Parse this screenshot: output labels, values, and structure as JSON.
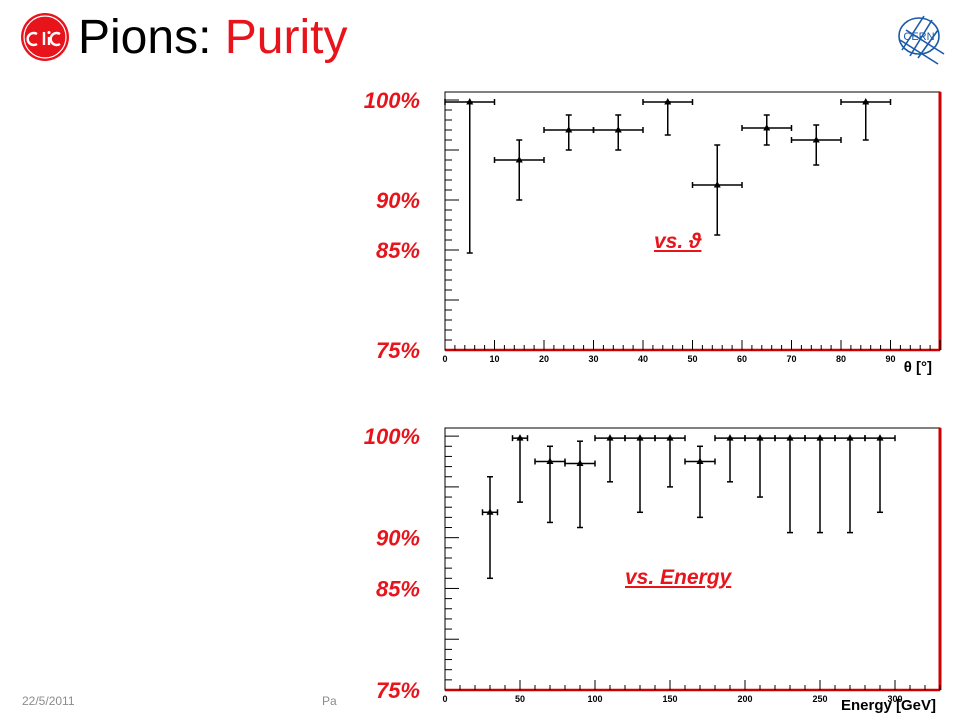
{
  "header": {
    "title_prefix": "Pions: ",
    "title_accent": "Purity"
  },
  "footer": {
    "date": "22/5/2011",
    "page_fragment": "Pa"
  },
  "colors": {
    "accent": "#e8141c",
    "frame_right_edge": "#cc0000",
    "cern_blue": "#1a5aa8",
    "footer_text": "#8c8c8c"
  },
  "icons": [
    "clic-logo",
    "cern-logo"
  ],
  "logos": {
    "cern_text": "CERN",
    "clic_text": "CLIC"
  },
  "chart_data": [
    {
      "type": "scatter",
      "style": "error-bars",
      "note_label": "vs. ϑ",
      "xlabel": "θ [°]",
      "xlim": [
        0,
        100
      ],
      "ylim": [
        75,
        100.8
      ],
      "x_ticks": [
        0,
        10,
        20,
        30,
        40,
        50,
        60,
        70,
        80,
        90
      ],
      "y_labels": [
        {
          "value": 100,
          "text": "100%"
        },
        {
          "value": 90,
          "text": "90%"
        },
        {
          "value": 85,
          "text": "85%"
        },
        {
          "value": 75,
          "text": "75%"
        }
      ],
      "grid": false,
      "points": [
        {
          "x": 5,
          "y": 99.8,
          "xerr": 5,
          "ylo": 84.7,
          "yhi": 99.8
        },
        {
          "x": 15,
          "y": 94.0,
          "xerr": 5,
          "ylo": 90.0,
          "yhi": 96.0
        },
        {
          "x": 25,
          "y": 97.0,
          "xerr": 5,
          "ylo": 95.0,
          "yhi": 98.5
        },
        {
          "x": 35,
          "y": 97.0,
          "xerr": 5,
          "ylo": 95.0,
          "yhi": 98.5
        },
        {
          "x": 45,
          "y": 99.8,
          "xerr": 5,
          "ylo": 96.5,
          "yhi": 99.8
        },
        {
          "x": 55,
          "y": 91.5,
          "xerr": 5,
          "ylo": 86.5,
          "yhi": 95.5
        },
        {
          "x": 65,
          "y": 97.2,
          "xerr": 5,
          "ylo": 95.5,
          "yhi": 98.5
        },
        {
          "x": 75,
          "y": 96.0,
          "xerr": 5,
          "ylo": 93.5,
          "yhi": 97.5
        },
        {
          "x": 85,
          "y": 99.8,
          "xerr": 5,
          "ylo": 96.0,
          "yhi": 99.8
        }
      ]
    },
    {
      "type": "scatter",
      "style": "error-bars",
      "note_label": "vs. Energy",
      "xlabel": "Energy [GeV]",
      "xlim": [
        0,
        330
      ],
      "ylim": [
        75,
        100.8
      ],
      "x_ticks": [
        0,
        50,
        100,
        150,
        200,
        250,
        300
      ],
      "y_labels": [
        {
          "value": 100,
          "text": "100%"
        },
        {
          "value": 90,
          "text": "90%"
        },
        {
          "value": 85,
          "text": "85%"
        },
        {
          "value": 75,
          "text": "75%"
        }
      ],
      "grid": false,
      "points": [
        {
          "x": 30,
          "y": 92.5,
          "xerr": 5,
          "ylo": 86.0,
          "yhi": 96.0
        },
        {
          "x": 50,
          "y": 99.8,
          "xerr": 5,
          "ylo": 93.5,
          "yhi": 99.8
        },
        {
          "x": 70,
          "y": 97.5,
          "xerr": 10,
          "ylo": 91.5,
          "yhi": 99.0
        },
        {
          "x": 90,
          "y": 97.3,
          "xerr": 10,
          "ylo": 91.0,
          "yhi": 99.5
        },
        {
          "x": 110,
          "y": 99.8,
          "xerr": 10,
          "ylo": 95.5,
          "yhi": 99.8
        },
        {
          "x": 130,
          "y": 99.8,
          "xerr": 10,
          "ylo": 92.5,
          "yhi": 99.8
        },
        {
          "x": 150,
          "y": 99.8,
          "xerr": 10,
          "ylo": 95.0,
          "yhi": 99.8
        },
        {
          "x": 170,
          "y": 97.5,
          "xerr": 10,
          "ylo": 92.0,
          "yhi": 99.0
        },
        {
          "x": 190,
          "y": 99.8,
          "xerr": 10,
          "ylo": 95.5,
          "yhi": 99.8
        },
        {
          "x": 210,
          "y": 99.8,
          "xerr": 10,
          "ylo": 94.0,
          "yhi": 99.8
        },
        {
          "x": 230,
          "y": 99.8,
          "xerr": 10,
          "ylo": 90.5,
          "yhi": 99.8
        },
        {
          "x": 250,
          "y": 99.8,
          "xerr": 10,
          "ylo": 90.5,
          "yhi": 99.8
        },
        {
          "x": 270,
          "y": 99.8,
          "xerr": 10,
          "ylo": 90.5,
          "yhi": 99.8
        },
        {
          "x": 290,
          "y": 99.8,
          "xerr": 10,
          "ylo": 92.5,
          "yhi": 99.8
        }
      ]
    }
  ]
}
